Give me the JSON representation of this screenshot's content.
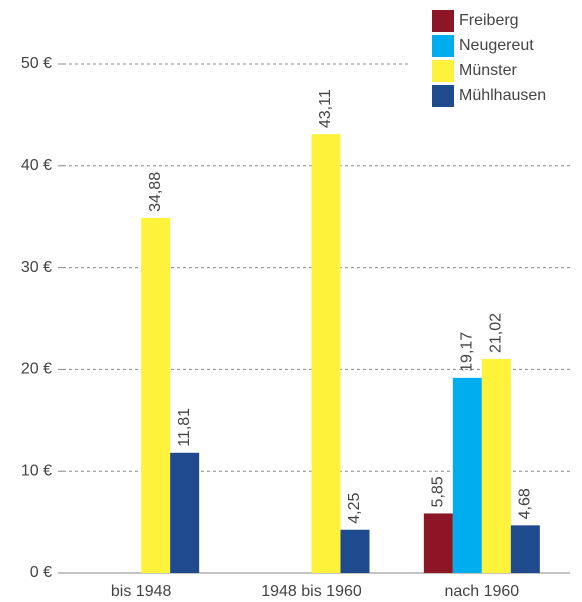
{
  "chart_data": {
    "type": "bar",
    "categories": [
      "bis 1948",
      "1948 bis 1960",
      "nach 1960"
    ],
    "series": [
      {
        "name": "Freiberg",
        "color": "#8c1626",
        "values": [
          null,
          null,
          5.85
        ],
        "value_labels": [
          null,
          null,
          "5,85"
        ]
      },
      {
        "name": "Neugereut",
        "color": "#00aeef",
        "values": [
          null,
          null,
          19.17
        ],
        "value_labels": [
          null,
          null,
          "19,17"
        ]
      },
      {
        "name": "Münster",
        "color": "#fff23a",
        "values": [
          34.88,
          43.11,
          21.02
        ],
        "value_labels": [
          "34,88",
          "43,11",
          "21,02"
        ]
      },
      {
        "name": "Mühlhausen",
        "color": "#1f4b8e",
        "values": [
          11.81,
          4.25,
          4.68
        ],
        "value_labels": [
          "11,81",
          "4,25",
          "4,68"
        ]
      }
    ],
    "ylim": [
      0,
      50
    ],
    "yticks": [
      {
        "value": 0,
        "label": "0 €"
      },
      {
        "value": 10,
        "label": "10 €"
      },
      {
        "value": 20,
        "label": "20 €"
      },
      {
        "value": 30,
        "label": "30 €"
      },
      {
        "value": 40,
        "label": "40 €"
      },
      {
        "value": 50,
        "label": "50 €"
      }
    ],
    "grid": true,
    "legend": "top-right"
  }
}
